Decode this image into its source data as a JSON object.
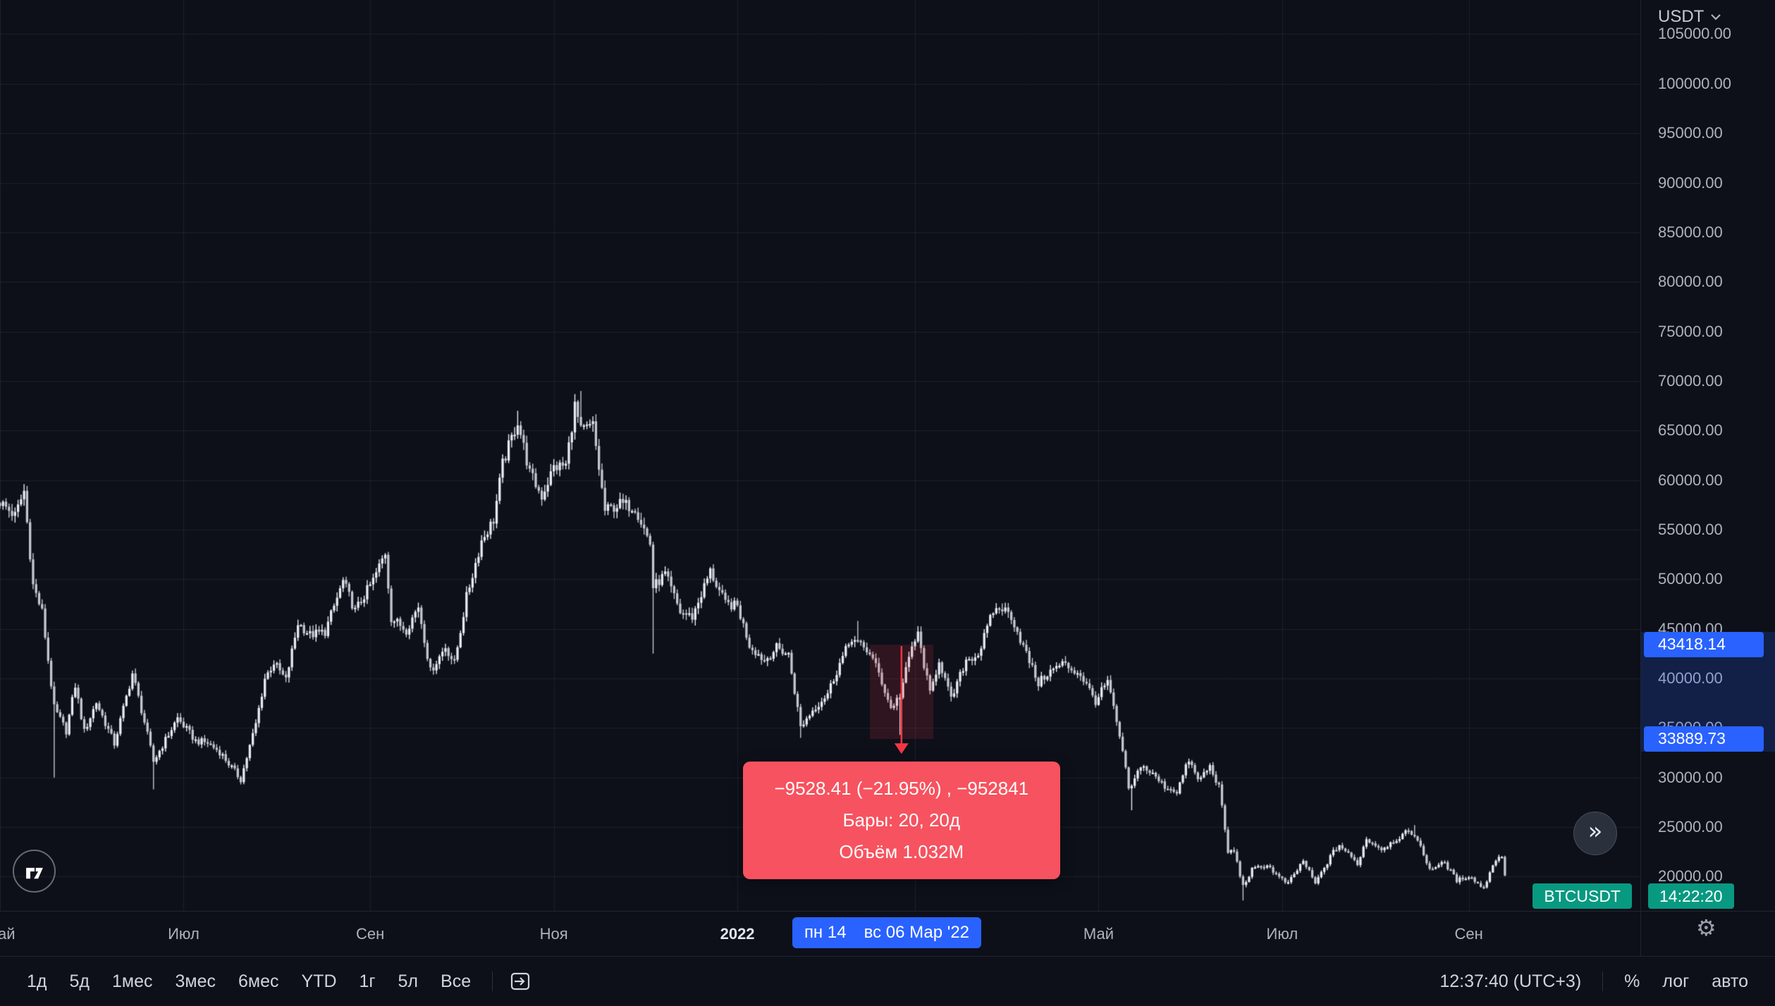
{
  "colors": {
    "bg": "#0d1019",
    "accent_blue": "#2962ff",
    "up_green": "#089981",
    "measure_red": "#f23645",
    "tooltip_bg": "#f7525f",
    "grid": "rgba(247,249,253,0.07)",
    "candle_up": "#e8ebf1",
    "candle_down": "#c2c7d1",
    "axis_text": "#aeb2bd"
  },
  "icons": {
    "goto_realtime": "»",
    "gear": "⚙"
  },
  "price_axis": {
    "currency": "USDT"
  },
  "measure": {
    "from_date": "2022-02-14",
    "to_date": "2022-03-06",
    "from_price": 43418.14,
    "to_price": 33889.73,
    "from_price_label": "43418.14",
    "to_price_label": "33889.73",
    "from_date_label": "пн 14",
    "to_date_label": "вс 06 Мар '22",
    "tooltip": {
      "line1": "−9528.41 (−21.95%) , −952841",
      "line2": "Бары: 20, 20д",
      "line3": "Объём 1.032M"
    }
  },
  "symbol_label": "BTCUSDT",
  "countdown": "14:22:20",
  "toolbar": {
    "ranges": [
      "1д",
      "5д",
      "1мес",
      "3мес",
      "6мес",
      "YTD",
      "1г",
      "5л",
      "Все"
    ],
    "range_keys": [
      "1d",
      "5d",
      "1m",
      "3m",
      "6m",
      "ytd",
      "1y",
      "5y",
      "all"
    ],
    "clock": "12:37:40 (UTC+3)",
    "scale_modes": [
      "%",
      "лог",
      "авто"
    ],
    "scale_keys": [
      "percent",
      "log",
      "auto"
    ]
  },
  "chart_data": {
    "type": "candlestick",
    "symbol": "BTCUSDT",
    "interval": "1D",
    "grid": true,
    "xlim": [
      "2021-05-01",
      "2022-10-28"
    ],
    "ylim": [
      16546,
      108444
    ],
    "x_ticks": [
      {
        "label": "Май",
        "date": "2021-05-01"
      },
      {
        "label": "Июл",
        "date": "2021-07-01"
      },
      {
        "label": "Сен",
        "date": "2021-09-01"
      },
      {
        "label": "Ноя",
        "date": "2021-11-01"
      },
      {
        "label": "2022",
        "date": "2022-01-01",
        "emphasis": true
      },
      {
        "label": "",
        "date": "2022-03-01"
      },
      {
        "label": "Май",
        "date": "2022-05-01"
      },
      {
        "label": "Июл",
        "date": "2022-07-01"
      },
      {
        "label": "Сен",
        "date": "2022-09-01"
      }
    ],
    "y_ticks": [
      {
        "v": 105000,
        "label": "105000.00"
      },
      {
        "v": 100000,
        "label": "100000.00"
      },
      {
        "v": 95000,
        "label": "95000.00"
      },
      {
        "v": 90000,
        "label": "90000.00"
      },
      {
        "v": 85000,
        "label": "85000.00"
      },
      {
        "v": 80000,
        "label": "80000.00"
      },
      {
        "v": 75000,
        "label": "75000.00"
      },
      {
        "v": 70000,
        "label": "70000.00"
      },
      {
        "v": 65000,
        "label": "65000.00"
      },
      {
        "v": 60000,
        "label": "60000.00"
      },
      {
        "v": 55000,
        "label": "55000.00"
      },
      {
        "v": 50000,
        "label": "50000.00"
      },
      {
        "v": 45000,
        "label": "45000.00"
      },
      {
        "v": 40000,
        "label": "40000.00"
      },
      {
        "v": 35000,
        "label": "35000.00"
      },
      {
        "v": 30000,
        "label": "30000.00"
      },
      {
        "v": 25000,
        "label": "25000.00"
      },
      {
        "v": 20000,
        "label": "20000.00"
      }
    ],
    "anchors": [
      [
        "2021-05-01",
        57800
      ],
      [
        "2021-05-06",
        56400
      ],
      [
        "2021-05-09",
        58900,
        null,
        59600
      ],
      [
        "2021-05-12",
        49400
      ],
      [
        "2021-05-15",
        46700
      ],
      [
        "2021-05-19",
        37000,
        30000
      ],
      [
        "2021-05-23",
        34700
      ],
      [
        "2021-05-26",
        39300
      ],
      [
        "2021-05-29",
        34600
      ],
      [
        "2021-06-02",
        37600
      ],
      [
        "2021-06-08",
        33400
      ],
      [
        "2021-06-14",
        40500
      ],
      [
        "2021-06-18",
        35600
      ],
      [
        "2021-06-21",
        31600,
        28800
      ],
      [
        "2021-06-29",
        36000
      ],
      [
        "2021-07-05",
        33700
      ],
      [
        "2021-07-09",
        33500
      ],
      [
        "2021-07-13",
        32600
      ],
      [
        "2021-07-20",
        29800,
        29300
      ],
      [
        "2021-07-25",
        35400
      ],
      [
        "2021-07-28",
        40000
      ],
      [
        "2021-07-31",
        41600
      ],
      [
        "2021-08-04",
        39800
      ],
      [
        "2021-08-08",
        45600
      ],
      [
        "2021-08-12",
        44400
      ],
      [
        "2021-08-17",
        44700
      ],
      [
        "2021-08-23",
        49800
      ],
      [
        "2021-08-27",
        46800
      ],
      [
        "2021-09-02",
        49900
      ],
      [
        "2021-09-06",
        52700
      ],
      [
        "2021-09-08",
        46100
      ],
      [
        "2021-09-13",
        44900
      ],
      [
        "2021-09-17",
        47300
      ],
      [
        "2021-09-21",
        40700
      ],
      [
        "2021-09-26",
        43200
      ],
      [
        "2021-09-29",
        41500
      ],
      [
        "2021-10-03",
        48200
      ],
      [
        "2021-10-08",
        53900
      ],
      [
        "2021-10-12",
        56000
      ],
      [
        "2021-10-15",
        61600
      ],
      [
        "2021-10-20",
        66000,
        null,
        67000
      ],
      [
        "2021-10-24",
        60700
      ],
      [
        "2021-10-28",
        58400
      ],
      [
        "2021-11-01",
        61300
      ],
      [
        "2021-11-05",
        61500
      ],
      [
        "2021-11-08",
        67500
      ],
      [
        "2021-11-10",
        64900,
        null,
        69000
      ],
      [
        "2021-11-14",
        65500
      ],
      [
        "2021-11-18",
        56900
      ],
      [
        "2021-11-23",
        57600
      ],
      [
        "2021-11-28",
        57300
      ],
      [
        "2021-12-03",
        53600
      ],
      [
        "2021-12-04",
        49200,
        42500
      ],
      [
        "2021-12-08",
        50500
      ],
      [
        "2021-12-13",
        46700
      ],
      [
        "2021-12-17",
        46200
      ],
      [
        "2021-12-23",
        50800
      ],
      [
        "2021-12-28",
        47500
      ],
      [
        "2022-01-01",
        47300
      ],
      [
        "2022-01-05",
        43400
      ],
      [
        "2022-01-10",
        41800
      ],
      [
        "2022-01-14",
        43100
      ],
      [
        "2022-01-18",
        42400
      ],
      [
        "2022-01-22",
        35100,
        34000
      ],
      [
        "2022-01-26",
        36800
      ],
      [
        "2022-01-31",
        38500
      ],
      [
        "2022-02-04",
        41500
      ],
      [
        "2022-02-08",
        44100
      ],
      [
        "2022-02-10",
        43500,
        null,
        45800
      ],
      [
        "2022-02-14",
        42600
      ],
      [
        "2022-02-17",
        40500
      ],
      [
        "2022-02-21",
        37000
      ],
      [
        "2022-02-24",
        38300,
        34300
      ],
      [
        "2022-02-28",
        43200
      ],
      [
        "2022-03-02",
        44400
      ],
      [
        "2022-03-06",
        38400
      ],
      [
        "2022-03-09",
        41900
      ],
      [
        "2022-03-13",
        37800
      ],
      [
        "2022-03-18",
        41900
      ],
      [
        "2022-03-22",
        42400
      ],
      [
        "2022-03-27",
        46800
      ],
      [
        "2022-03-30",
        47100
      ],
      [
        "2022-04-02",
        46300
      ],
      [
        "2022-04-06",
        43200
      ],
      [
        "2022-04-11",
        39500
      ],
      [
        "2022-04-14",
        40500
      ],
      [
        "2022-04-19",
        41500
      ],
      [
        "2022-04-25",
        40400
      ],
      [
        "2022-04-30",
        37700
      ],
      [
        "2022-05-04",
        39700
      ],
      [
        "2022-05-08",
        34100
      ],
      [
        "2022-05-11",
        29000
      ],
      [
        "2022-05-12",
        29000,
        26700
      ],
      [
        "2022-05-15",
        31300
      ],
      [
        "2022-05-19",
        30300
      ],
      [
        "2022-05-23",
        29100
      ],
      [
        "2022-05-27",
        28600
      ],
      [
        "2022-05-31",
        31800
      ],
      [
        "2022-06-03",
        29700
      ],
      [
        "2022-06-07",
        31100
      ],
      [
        "2022-06-10",
        29100
      ],
      [
        "2022-06-13",
        22500
      ],
      [
        "2022-06-15",
        22600
      ],
      [
        "2022-06-18",
        19000,
        17600
      ],
      [
        "2022-06-21",
        20700
      ],
      [
        "2022-06-26",
        21200
      ],
      [
        "2022-06-30",
        19900
      ],
      [
        "2022-07-03",
        19300
      ],
      [
        "2022-07-08",
        21600
      ],
      [
        "2022-07-12",
        19300
      ],
      [
        "2022-07-18",
        22500
      ],
      [
        "2022-07-20",
        23200
      ],
      [
        "2022-07-26",
        21300
      ],
      [
        "2022-07-29",
        23800
      ],
      [
        "2022-08-03",
        22800
      ],
      [
        "2022-08-08",
        23800
      ],
      [
        "2022-08-11",
        24400
      ],
      [
        "2022-08-14",
        24300,
        null,
        25200
      ],
      [
        "2022-08-19",
        20800
      ],
      [
        "2022-08-24",
        21400
      ],
      [
        "2022-08-28",
        19600
      ],
      [
        "2022-09-01",
        20100
      ],
      [
        "2022-09-06",
        18800
      ],
      [
        "2022-09-09",
        21300
      ],
      [
        "2022-09-12",
        22200
      ],
      [
        "2022-09-13",
        20200
      ]
    ]
  }
}
